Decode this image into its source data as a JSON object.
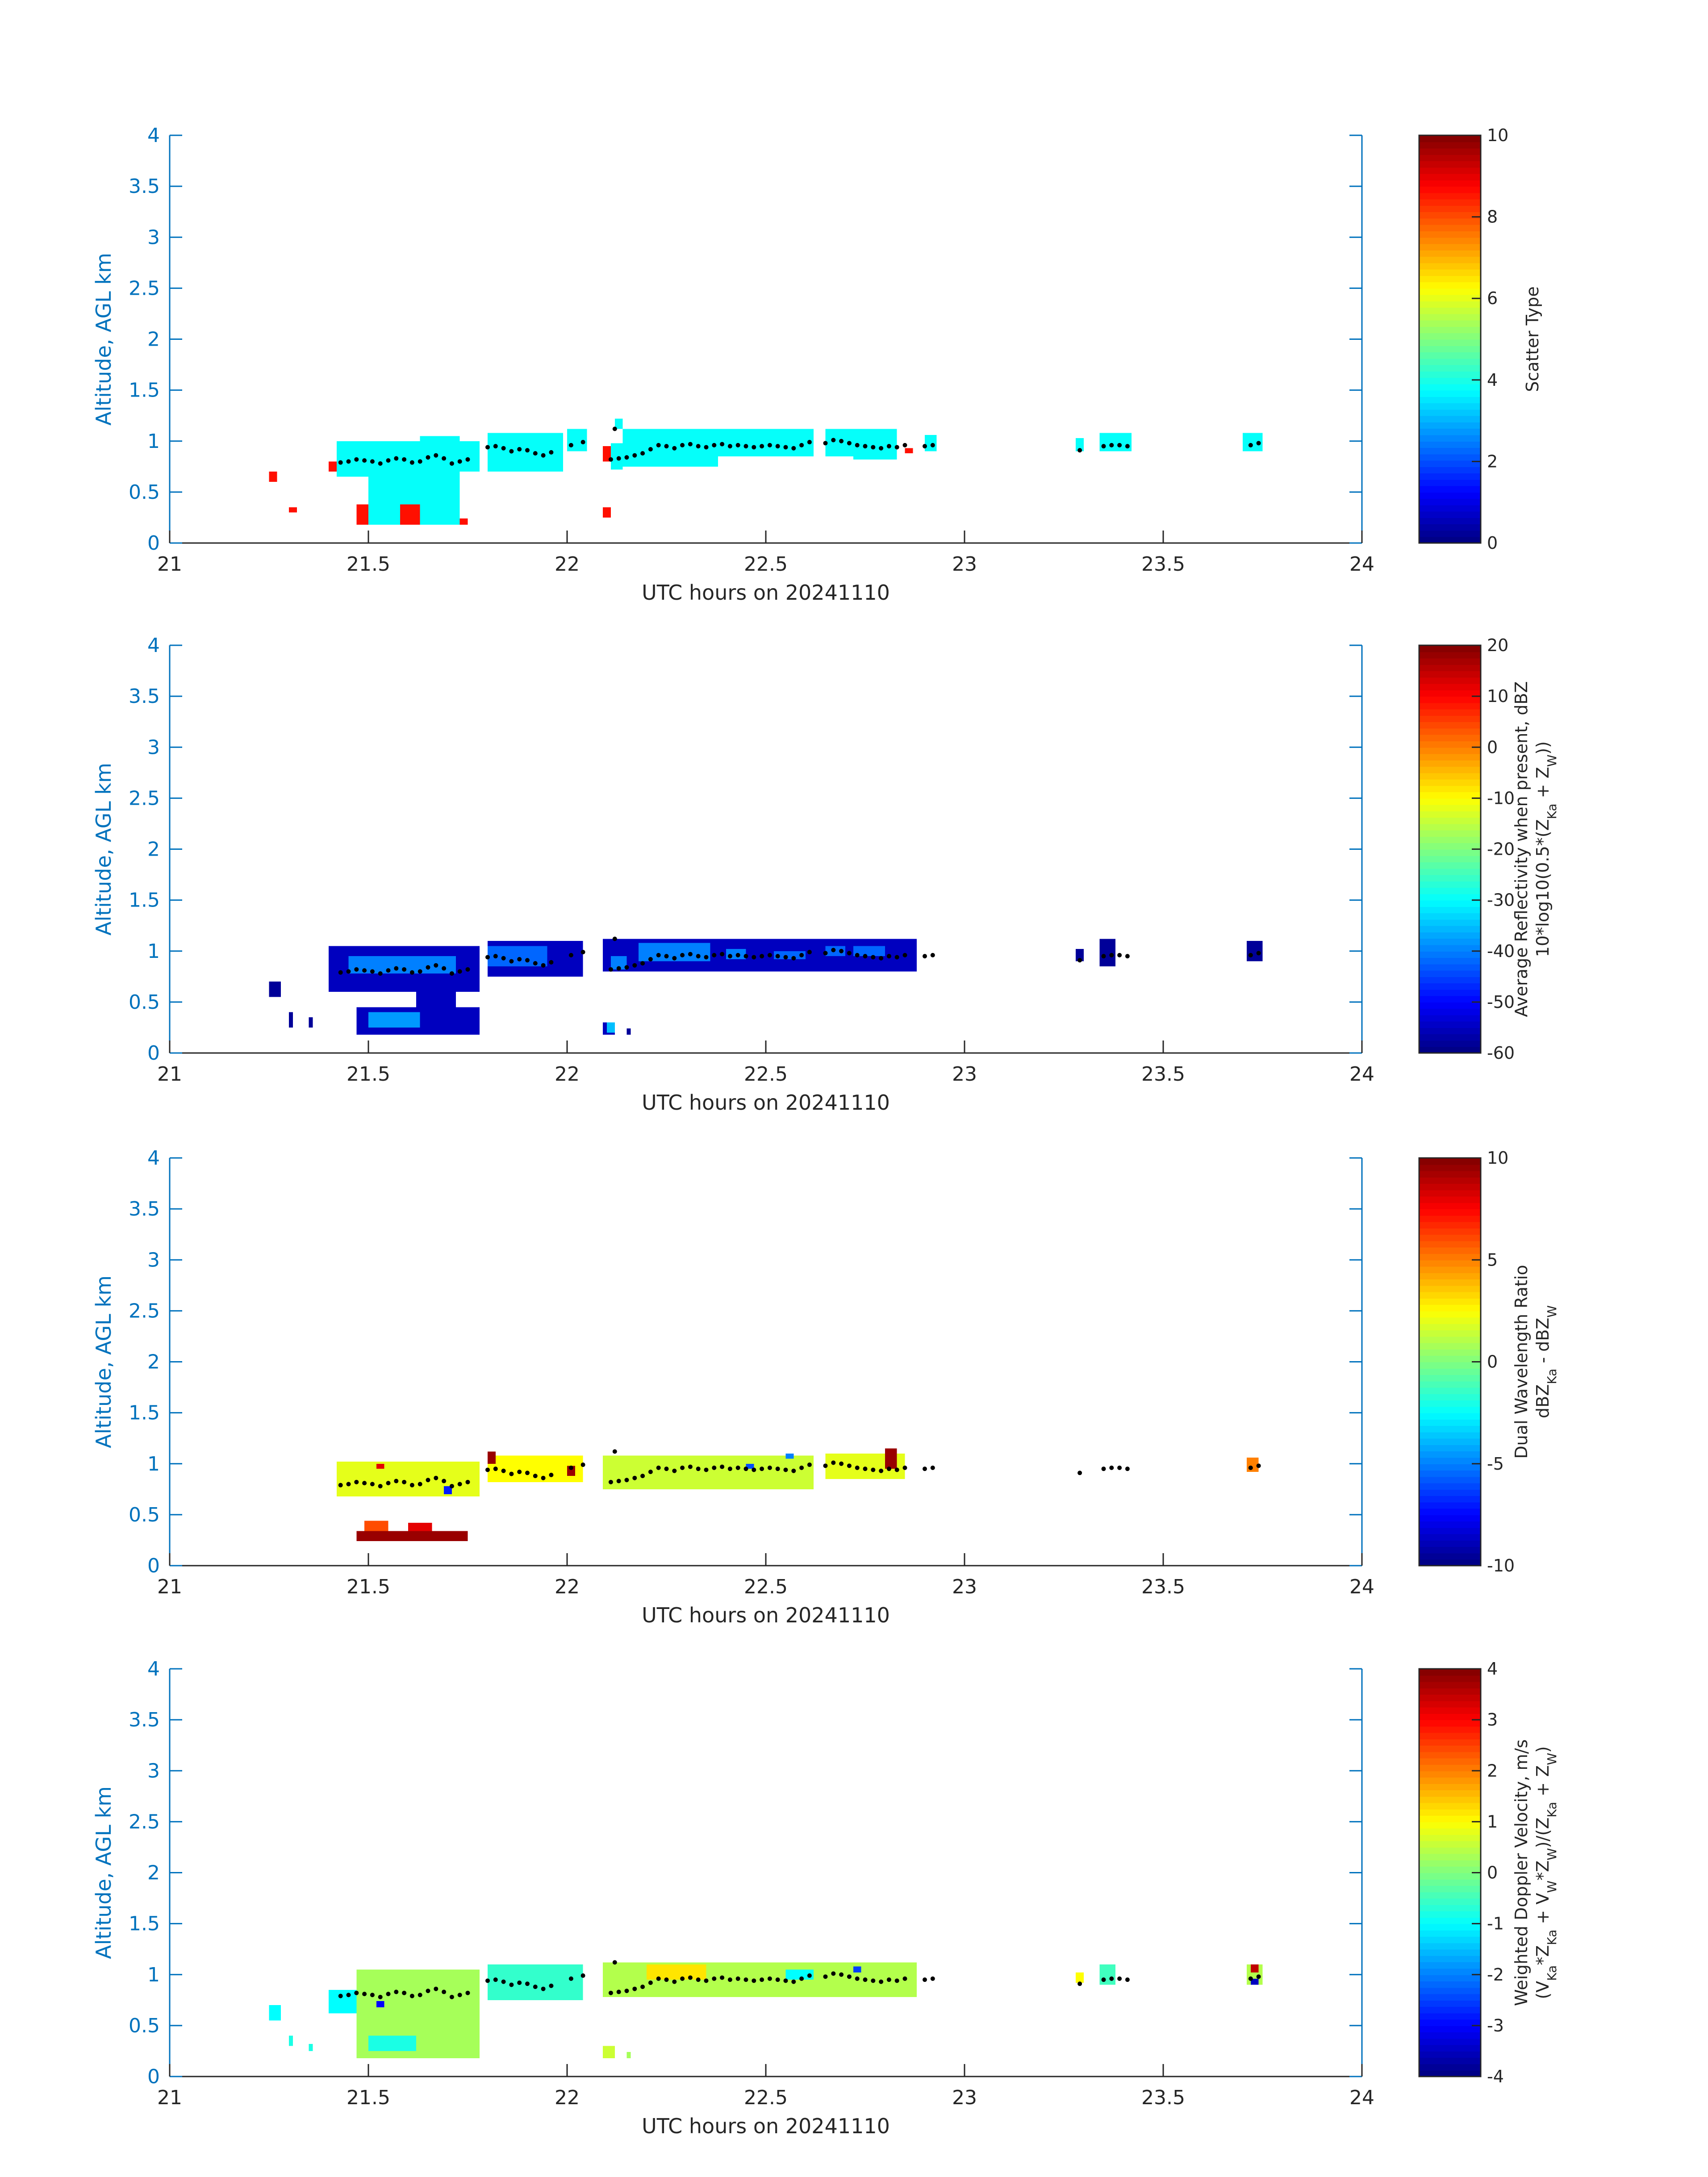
{
  "figure": {
    "background": "#ffffff",
    "axis_color": "#0072BD",
    "text_color": "#262626"
  },
  "chart_data": [
    {
      "type": "heatmap",
      "panel": "scatter-type",
      "xlabel": "UTC hours on 20241110",
      "ylabel": "Altitude, AGL km",
      "xlim": [
        21,
        24
      ],
      "ylim": [
        0,
        4
      ],
      "xticks": [
        "21",
        "21.5",
        "22",
        "22.5",
        "23",
        "23.5",
        "24"
      ],
      "yticks": [
        "0",
        "0.5",
        "1",
        "1.5",
        "2",
        "2.5",
        "3",
        "3.5",
        "4"
      ],
      "grid": false,
      "colormap": "jet",
      "colorbar": {
        "label_lines": [
          "Scatter Type"
        ],
        "range": [
          0,
          10
        ],
        "ticks": [
          "0",
          "2",
          "4",
          "6",
          "8",
          "10"
        ]
      },
      "cells": [
        {
          "x0": 21.25,
          "x1": 21.27,
          "y0": 0.6,
          "y1": 0.7,
          "value": 8.6
        },
        {
          "x0": 21.3,
          "x1": 21.32,
          "y0": 0.3,
          "y1": 0.35,
          "value": 8.6
        },
        {
          "x0": 21.4,
          "x1": 21.42,
          "y0": 0.7,
          "y1": 0.8,
          "value": 8.6
        },
        {
          "x0": 21.47,
          "x1": 21.63,
          "y0": 0.18,
          "y1": 0.38,
          "value": 8.6
        },
        {
          "x0": 21.73,
          "x1": 21.75,
          "y0": 0.18,
          "y1": 0.24,
          "value": 8.6
        },
        {
          "x0": 22.09,
          "x1": 22.11,
          "y0": 0.25,
          "y1": 0.35,
          "value": 8.6
        },
        {
          "x0": 22.09,
          "x1": 22.11,
          "y0": 0.8,
          "y1": 0.95,
          "value": 8.6
        },
        {
          "x0": 22.5,
          "x1": 22.52,
          "y0": 0.85,
          "y1": 0.9,
          "value": 8.6
        },
        {
          "x0": 22.65,
          "x1": 22.67,
          "y0": 0.85,
          "y1": 0.93,
          "value": 8.6
        },
        {
          "x0": 22.85,
          "x1": 22.87,
          "y0": 0.88,
          "y1": 0.93,
          "value": 8.6
        },
        {
          "x0": 21.42,
          "x1": 21.52,
          "y0": 0.65,
          "y1": 1.0,
          "value": 3.8
        },
        {
          "x0": 21.5,
          "x1": 21.58,
          "y0": 0.18,
          "y1": 1.0,
          "value": 3.8
        },
        {
          "x0": 21.58,
          "x1": 21.63,
          "y0": 0.38,
          "y1": 1.0,
          "value": 3.8
        },
        {
          "x0": 21.63,
          "x1": 21.73,
          "y0": 0.18,
          "y1": 1.05,
          "value": 3.8
        },
        {
          "x0": 21.73,
          "x1": 21.78,
          "y0": 0.7,
          "y1": 1.0,
          "value": 3.8
        },
        {
          "x0": 21.8,
          "x1": 21.99,
          "y0": 0.7,
          "y1": 1.08,
          "value": 3.8
        },
        {
          "x0": 22.0,
          "x1": 22.05,
          "y0": 0.9,
          "y1": 1.12,
          "value": 3.8
        },
        {
          "x0": 22.11,
          "x1": 22.14,
          "y0": 0.72,
          "y1": 0.98,
          "value": 3.8
        },
        {
          "x0": 22.12,
          "x1": 22.14,
          "y0": 1.12,
          "y1": 1.22,
          "value": 3.8
        },
        {
          "x0": 22.14,
          "x1": 22.38,
          "y0": 0.75,
          "y1": 1.12,
          "value": 3.8
        },
        {
          "x0": 22.38,
          "x1": 22.62,
          "y0": 0.85,
          "y1": 1.12,
          "value": 3.8
        },
        {
          "x0": 22.65,
          "x1": 22.72,
          "y0": 0.85,
          "y1": 1.12,
          "value": 3.8
        },
        {
          "x0": 22.72,
          "x1": 22.83,
          "y0": 0.82,
          "y1": 1.12,
          "value": 3.8
        },
        {
          "x0": 22.9,
          "x1": 22.93,
          "y0": 0.9,
          "y1": 1.06,
          "value": 3.8
        },
        {
          "x0": 23.28,
          "x1": 23.3,
          "y0": 0.9,
          "y1": 1.03,
          "value": 3.8
        },
        {
          "x0": 23.34,
          "x1": 23.42,
          "y0": 0.9,
          "y1": 1.08,
          "value": 3.8
        },
        {
          "x0": 23.7,
          "x1": 23.75,
          "y0": 0.9,
          "y1": 1.08,
          "value": 3.8
        }
      ]
    },
    {
      "type": "heatmap",
      "panel": "reflectivity",
      "xlabel": "UTC hours on 20241110",
      "ylabel": "Altitude, AGL km",
      "xlim": [
        21,
        24
      ],
      "ylim": [
        0,
        4
      ],
      "xticks": [
        "21",
        "21.5",
        "22",
        "22.5",
        "23",
        "23.5",
        "24"
      ],
      "yticks": [
        "0",
        "0.5",
        "1",
        "1.5",
        "2",
        "2.5",
        "3",
        "3.5",
        "4"
      ],
      "grid": false,
      "colormap": "jet",
      "colorbar": {
        "label_lines": [
          "Average Reflectivity when present, dBZ",
          "10*log10(0.5*(Z_Ka + Z_W))"
        ],
        "range": [
          -60,
          20
        ],
        "ticks": [
          "-60",
          "-50",
          "-40",
          "-30",
          "-20",
          "-10",
          "0",
          "10",
          "20"
        ]
      },
      "cells": [
        {
          "x0": 21.25,
          "x1": 21.28,
          "y0": 0.55,
          "y1": 0.7,
          "value": -58
        },
        {
          "x0": 21.3,
          "x1": 21.31,
          "y0": 0.25,
          "y1": 0.4,
          "value": -58
        },
        {
          "x0": 21.35,
          "x1": 21.36,
          "y0": 0.25,
          "y1": 0.35,
          "value": -58
        },
        {
          "x0": 21.4,
          "x1": 21.78,
          "y0": 0.6,
          "y1": 1.05,
          "value": -55
        },
        {
          "x0": 21.47,
          "x1": 21.78,
          "y0": 0.18,
          "y1": 0.45,
          "value": -55
        },
        {
          "x0": 21.62,
          "x1": 21.72,
          "y0": 0.45,
          "y1": 0.6,
          "value": -55
        },
        {
          "x0": 21.8,
          "x1": 22.04,
          "y0": 0.75,
          "y1": 1.1,
          "value": -55
        },
        {
          "x0": 22.09,
          "x1": 22.12,
          "y0": 0.18,
          "y1": 0.3,
          "value": -55
        },
        {
          "x0": 22.15,
          "x1": 22.16,
          "y0": 0.18,
          "y1": 0.24,
          "value": -58
        },
        {
          "x0": 22.09,
          "x1": 22.88,
          "y0": 0.8,
          "y1": 1.12,
          "value": -55
        },
        {
          "x0": 23.28,
          "x1": 23.3,
          "y0": 0.9,
          "y1": 1.02,
          "value": -58
        },
        {
          "x0": 23.34,
          "x1": 23.38,
          "y0": 0.85,
          "y1": 1.12,
          "value": -58
        },
        {
          "x0": 23.71,
          "x1": 23.75,
          "y0": 0.9,
          "y1": 1.1,
          "value": -58
        },
        {
          "x0": 21.45,
          "x1": 21.72,
          "y0": 0.78,
          "y1": 0.95,
          "value": -40
        },
        {
          "x0": 21.5,
          "x1": 21.63,
          "y0": 0.25,
          "y1": 0.4,
          "value": -38
        },
        {
          "x0": 21.8,
          "x1": 21.95,
          "y0": 0.85,
          "y1": 1.05,
          "value": -42
        },
        {
          "x0": 22.1,
          "x1": 22.12,
          "y0": 0.2,
          "y1": 0.3,
          "value": -35
        },
        {
          "x0": 22.11,
          "x1": 22.15,
          "y0": 0.82,
          "y1": 0.95,
          "value": -40
        },
        {
          "x0": 22.18,
          "x1": 22.36,
          "y0": 0.9,
          "y1": 1.08,
          "value": -40
        },
        {
          "x0": 22.4,
          "x1": 22.45,
          "y0": 0.92,
          "y1": 1.02,
          "value": -40
        },
        {
          "x0": 22.52,
          "x1": 22.6,
          "y0": 0.92,
          "y1": 1.0,
          "value": -42
        },
        {
          "x0": 22.65,
          "x1": 22.7,
          "y0": 0.95,
          "y1": 1.05,
          "value": -42
        },
        {
          "x0": 22.72,
          "x1": 22.8,
          "y0": 0.95,
          "y1": 1.05,
          "value": -42
        }
      ]
    },
    {
      "type": "heatmap",
      "panel": "dual-wavelength-ratio",
      "xlabel": "UTC hours on 20241110",
      "ylabel": "Altitude, AGL km",
      "xlim": [
        21,
        24
      ],
      "ylim": [
        0,
        4
      ],
      "xticks": [
        "21",
        "21.5",
        "22",
        "22.5",
        "23",
        "23.5",
        "24"
      ],
      "yticks": [
        "0",
        "0.5",
        "1",
        "1.5",
        "2",
        "2.5",
        "3",
        "3.5",
        "4"
      ],
      "grid": false,
      "colormap": "jet",
      "colorbar": {
        "label_lines": [
          "Dual Wavelength Ratio",
          "dBZ_Ka - dBZ_W"
        ],
        "range": [
          -10,
          10
        ],
        "ticks": [
          "-10",
          "-5",
          "0",
          "5",
          "10"
        ]
      },
      "cells": [
        {
          "x0": 21.47,
          "x1": 21.75,
          "y0": 0.24,
          "y1": 0.34,
          "value": 9.5
        },
        {
          "x0": 21.49,
          "x1": 21.55,
          "y0": 0.34,
          "y1": 0.44,
          "value": 6
        },
        {
          "x0": 21.6,
          "x1": 21.66,
          "y0": 0.34,
          "y1": 0.42,
          "value": 8
        },
        {
          "x0": 21.42,
          "x1": 21.78,
          "y0": 0.68,
          "y1": 1.02,
          "value": 2
        },
        {
          "x0": 21.8,
          "x1": 22.04,
          "y0": 0.82,
          "y1": 1.08,
          "value": 2.5
        },
        {
          "x0": 22.09,
          "x1": 22.62,
          "y0": 0.75,
          "y1": 1.08,
          "value": 1.5
        },
        {
          "x0": 22.65,
          "x1": 22.85,
          "y0": 0.85,
          "y1": 1.1,
          "value": 2
        },
        {
          "x0": 21.8,
          "x1": 21.82,
          "y0": 1.0,
          "y1": 1.12,
          "value": 9.5
        },
        {
          "x0": 22.0,
          "x1": 22.02,
          "y0": 0.88,
          "y1": 0.98,
          "value": 9.5
        },
        {
          "x0": 22.8,
          "x1": 22.83,
          "y0": 0.95,
          "y1": 1.15,
          "value": 9.5
        },
        {
          "x0": 21.52,
          "x1": 21.54,
          "y0": 0.95,
          "y1": 1.0,
          "value": 8
        },
        {
          "x0": 21.69,
          "x1": 21.71,
          "y0": 0.7,
          "y1": 0.78,
          "value": -7
        },
        {
          "x0": 22.45,
          "x1": 22.47,
          "y0": 0.95,
          "y1": 1.0,
          "value": -6
        },
        {
          "x0": 22.55,
          "x1": 22.57,
          "y0": 1.05,
          "y1": 1.1,
          "value": -5
        },
        {
          "x0": 23.71,
          "x1": 23.74,
          "y0": 0.92,
          "y1": 1.06,
          "value": 5
        }
      ]
    },
    {
      "type": "heatmap",
      "panel": "doppler-velocity",
      "xlabel": "UTC hours on 20241110",
      "ylabel": "Altitude, AGL km",
      "xlim": [
        21,
        24
      ],
      "ylim": [
        0,
        4
      ],
      "xticks": [
        "21",
        "21.5",
        "22",
        "22.5",
        "23",
        "23.5",
        "24"
      ],
      "yticks": [
        "0",
        "0.5",
        "1",
        "1.5",
        "2",
        "2.5",
        "3",
        "3.5",
        "4"
      ],
      "grid": false,
      "colormap": "jet",
      "colorbar": {
        "label_lines": [
          "Weighted Doppler Velocity, m/s",
          "(V_Ka*Z_Ka + V_W*Z_W)/(Z_Ka + Z_W)"
        ],
        "range": [
          -4,
          4
        ],
        "ticks": [
          "-4",
          "-3",
          "-2",
          "-1",
          "0",
          "1",
          "2",
          "3",
          "4"
        ]
      },
      "cells": [
        {
          "x0": 21.25,
          "x1": 21.28,
          "y0": 0.55,
          "y1": 0.7,
          "value": -1
        },
        {
          "x0": 21.3,
          "x1": 21.31,
          "y0": 0.3,
          "y1": 0.4,
          "value": -0.8
        },
        {
          "x0": 21.35,
          "x1": 21.36,
          "y0": 0.25,
          "y1": 0.32,
          "value": -0.8
        },
        {
          "x0": 21.4,
          "x1": 21.47,
          "y0": 0.62,
          "y1": 0.85,
          "value": -1
        },
        {
          "x0": 21.47,
          "x1": 21.78,
          "y0": 0.18,
          "y1": 1.05,
          "value": 0.3
        },
        {
          "x0": 21.5,
          "x1": 21.62,
          "y0": 0.25,
          "y1": 0.4,
          "value": -0.8
        },
        {
          "x0": 21.8,
          "x1": 22.04,
          "y0": 0.75,
          "y1": 1.1,
          "value": -0.6
        },
        {
          "x0": 22.09,
          "x1": 22.12,
          "y0": 0.18,
          "y1": 0.3,
          "value": 0.6
        },
        {
          "x0": 22.15,
          "x1": 22.16,
          "y0": 0.18,
          "y1": 0.24,
          "value": 0.3
        },
        {
          "x0": 22.09,
          "x1": 22.88,
          "y0": 0.78,
          "y1": 1.12,
          "value": 0.4
        },
        {
          "x0": 22.2,
          "x1": 22.35,
          "y0": 0.95,
          "y1": 1.1,
          "value": 1.2
        },
        {
          "x0": 22.55,
          "x1": 22.62,
          "y0": 0.95,
          "y1": 1.05,
          "value": -1
        },
        {
          "x0": 23.28,
          "x1": 23.3,
          "y0": 0.92,
          "y1": 1.02,
          "value": 1
        },
        {
          "x0": 23.34,
          "x1": 23.38,
          "y0": 0.9,
          "y1": 1.1,
          "value": -0.5
        },
        {
          "x0": 23.71,
          "x1": 23.75,
          "y0": 0.9,
          "y1": 1.1,
          "value": 0.4
        },
        {
          "x0": 23.72,
          "x1": 23.74,
          "y0": 1.02,
          "y1": 1.1,
          "value": 3.5
        },
        {
          "x0": 23.72,
          "x1": 23.74,
          "y0": 0.9,
          "y1": 0.96,
          "value": -3.5
        },
        {
          "x0": 21.52,
          "x1": 21.54,
          "y0": 0.68,
          "y1": 0.74,
          "value": -3
        },
        {
          "x0": 22.72,
          "x1": 22.74,
          "y0": 1.02,
          "y1": 1.08,
          "value": -2.5
        }
      ]
    }
  ],
  "cloud_base_points": [
    {
      "x": 21.43,
      "y": 0.79
    },
    {
      "x": 21.45,
      "y": 0.8
    },
    {
      "x": 21.47,
      "y": 0.82
    },
    {
      "x": 21.49,
      "y": 0.81
    },
    {
      "x": 21.51,
      "y": 0.8
    },
    {
      "x": 21.53,
      "y": 0.78
    },
    {
      "x": 21.55,
      "y": 0.81
    },
    {
      "x": 21.57,
      "y": 0.83
    },
    {
      "x": 21.59,
      "y": 0.82
    },
    {
      "x": 21.61,
      "y": 0.79
    },
    {
      "x": 21.63,
      "y": 0.8
    },
    {
      "x": 21.65,
      "y": 0.84
    },
    {
      "x": 21.67,
      "y": 0.86
    },
    {
      "x": 21.69,
      "y": 0.83
    },
    {
      "x": 21.71,
      "y": 0.78
    },
    {
      "x": 21.73,
      "y": 0.8
    },
    {
      "x": 21.75,
      "y": 0.82
    },
    {
      "x": 21.8,
      "y": 0.94
    },
    {
      "x": 21.82,
      "y": 0.95
    },
    {
      "x": 21.84,
      "y": 0.93
    },
    {
      "x": 21.86,
      "y": 0.9
    },
    {
      "x": 21.88,
      "y": 0.92
    },
    {
      "x": 21.9,
      "y": 0.91
    },
    {
      "x": 21.92,
      "y": 0.88
    },
    {
      "x": 21.94,
      "y": 0.86
    },
    {
      "x": 21.96,
      "y": 0.89
    },
    {
      "x": 22.01,
      "y": 0.96
    },
    {
      "x": 22.04,
      "y": 0.99
    },
    {
      "x": 22.12,
      "y": 1.12
    },
    {
      "x": 22.11,
      "y": 0.82
    },
    {
      "x": 22.13,
      "y": 0.83
    },
    {
      "x": 22.15,
      "y": 0.84
    },
    {
      "x": 22.17,
      "y": 0.86
    },
    {
      "x": 22.19,
      "y": 0.88
    },
    {
      "x": 22.21,
      "y": 0.92
    },
    {
      "x": 22.23,
      "y": 0.96
    },
    {
      "x": 22.25,
      "y": 0.95
    },
    {
      "x": 22.27,
      "y": 0.93
    },
    {
      "x": 22.29,
      "y": 0.96
    },
    {
      "x": 22.31,
      "y": 0.97
    },
    {
      "x": 22.33,
      "y": 0.95
    },
    {
      "x": 22.35,
      "y": 0.94
    },
    {
      "x": 22.37,
      "y": 0.96
    },
    {
      "x": 22.39,
      "y": 0.97
    },
    {
      "x": 22.41,
      "y": 0.95
    },
    {
      "x": 22.43,
      "y": 0.96
    },
    {
      "x": 22.45,
      "y": 0.95
    },
    {
      "x": 22.47,
      "y": 0.94
    },
    {
      "x": 22.49,
      "y": 0.95
    },
    {
      "x": 22.51,
      "y": 0.96
    },
    {
      "x": 22.53,
      "y": 0.95
    },
    {
      "x": 22.55,
      "y": 0.94
    },
    {
      "x": 22.57,
      "y": 0.93
    },
    {
      "x": 22.59,
      "y": 0.96
    },
    {
      "x": 22.61,
      "y": 0.99
    },
    {
      "x": 22.65,
      "y": 0.98
    },
    {
      "x": 22.67,
      "y": 1.01
    },
    {
      "x": 22.69,
      "y": 1.0
    },
    {
      "x": 22.71,
      "y": 0.98
    },
    {
      "x": 22.73,
      "y": 0.96
    },
    {
      "x": 22.75,
      "y": 0.95
    },
    {
      "x": 22.77,
      "y": 0.94
    },
    {
      "x": 22.79,
      "y": 0.93
    },
    {
      "x": 22.81,
      "y": 0.95
    },
    {
      "x": 22.83,
      "y": 0.94
    },
    {
      "x": 22.85,
      "y": 0.96
    },
    {
      "x": 22.9,
      "y": 0.95
    },
    {
      "x": 22.92,
      "y": 0.96
    },
    {
      "x": 23.29,
      "y": 0.91
    },
    {
      "x": 23.35,
      "y": 0.95
    },
    {
      "x": 23.37,
      "y": 0.96
    },
    {
      "x": 23.39,
      "y": 0.96
    },
    {
      "x": 23.41,
      "y": 0.95
    },
    {
      "x": 23.72,
      "y": 0.96
    },
    {
      "x": 23.74,
      "y": 0.98
    }
  ]
}
